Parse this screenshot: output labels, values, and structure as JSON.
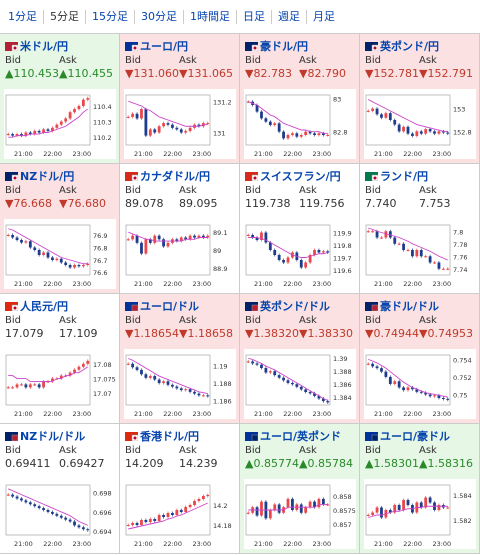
{
  "tabs": [
    {
      "label": "1分足",
      "active": false
    },
    {
      "label": "5分足",
      "active": true
    },
    {
      "label": "15分足",
      "active": false
    },
    {
      "label": "30分足",
      "active": false
    },
    {
      "label": "1時間足",
      "active": false
    },
    {
      "label": "日足",
      "active": false
    },
    {
      "label": "週足",
      "active": false
    },
    {
      "label": "月足",
      "active": false
    }
  ],
  "labels": {
    "bid": "Bid",
    "ask": "Ask"
  },
  "colors": {
    "up_bg": "#e6f7e6",
    "down_bg": "#fbe1e1",
    "up_text": "#2a8a2a",
    "down_text": "#c0392b",
    "link": "#0645ad",
    "candle_up": "#e8474c",
    "candle_down": "#1e3c8c",
    "ma": "#cc44cc"
  },
  "pairs": [
    {
      "name": "米ドル/円",
      "flag": "us-jp",
      "trend": "up",
      "bid": "▲110.453",
      "ask": "▲110.455",
      "ticks": [
        "110.4",
        "110.3",
        "110.2"
      ],
      "times": [
        "21:00",
        "22:00",
        "23:00"
      ],
      "chart_data": {
        "type": "candlestick",
        "ylim": [
          110.15,
          110.47
        ],
        "closes": [
          110.22,
          110.21,
          110.22,
          110.21,
          110.23,
          110.22,
          110.24,
          110.23,
          110.25,
          110.24,
          110.26,
          110.28,
          110.3,
          110.32,
          110.36,
          110.38,
          110.4,
          110.44,
          110.45
        ],
        "ma": [
          110.2,
          110.2,
          110.21,
          110.21,
          110.21,
          110.22,
          110.22,
          110.22,
          110.23,
          110.23,
          110.24,
          110.25,
          110.26,
          110.27,
          110.29,
          110.31,
          110.33,
          110.36,
          110.38
        ]
      }
    },
    {
      "name": "ユーロ/円",
      "flag": "eu-jp",
      "trend": "down",
      "bid": "▼131.060",
      "ask": "▼131.065",
      "ticks": [
        "131.2",
        "131"
      ],
      "times": [
        "21:00",
        "22:00",
        "23:00"
      ],
      "chart_data": {
        "type": "candlestick",
        "ylim": [
          130.92,
          131.24
        ],
        "closes": [
          131.1,
          131.12,
          131.09,
          131.15,
          130.98,
          131.02,
          131.0,
          131.04,
          131.06,
          131.05,
          131.03,
          131.02,
          131.0,
          131.01,
          131.03,
          131.05,
          131.04,
          131.06,
          131.06
        ],
        "ma": [
          131.2,
          131.19,
          131.18,
          131.17,
          131.15,
          131.14,
          131.12,
          131.1,
          131.09,
          131.08,
          131.07,
          131.06,
          131.05,
          131.04,
          131.04,
          131.04,
          131.04,
          131.05,
          131.05
        ]
      }
    },
    {
      "name": "豪ドル/円",
      "flag": "au-jp",
      "trend": "down",
      "bid": "▼82.783",
      "ask": "▼82.790",
      "ticks": [
        "83",
        "82.8"
      ],
      "times": [
        "21:00",
        "22:00",
        "23:00"
      ],
      "chart_data": {
        "type": "candlestick",
        "ylim": [
          82.72,
          83.02
        ],
        "closes": [
          82.98,
          82.96,
          82.92,
          82.88,
          82.86,
          82.84,
          82.85,
          82.8,
          82.76,
          82.78,
          82.79,
          82.77,
          82.78,
          82.8,
          82.79,
          82.78,
          82.79,
          82.78,
          82.78
        ],
        "ma": [
          82.98,
          82.97,
          82.96,
          82.94,
          82.92,
          82.9,
          82.89,
          82.87,
          82.85,
          82.84,
          82.83,
          82.82,
          82.81,
          82.81,
          82.8,
          82.8,
          82.8,
          82.79,
          82.79
        ]
      }
    },
    {
      "name": "英ポンド/円",
      "flag": "gb-jp",
      "trend": "down",
      "bid": "▼152.781",
      "ask": "▼152.791",
      "ticks": [
        "153",
        "152.8"
      ],
      "times": [
        "21:00",
        "22:00",
        "23:00"
      ],
      "chart_data": {
        "type": "candlestick",
        "ylim": [
          152.68,
          153.12
        ],
        "closes": [
          152.98,
          153.0,
          152.95,
          152.92,
          152.96,
          152.9,
          152.86,
          152.8,
          152.84,
          152.78,
          152.76,
          152.8,
          152.78,
          152.82,
          152.8,
          152.78,
          152.8,
          152.79,
          152.78
        ],
        "ma": [
          153.08,
          153.06,
          153.04,
          153.02,
          153.0,
          152.98,
          152.96,
          152.94,
          152.92,
          152.9,
          152.88,
          152.86,
          152.85,
          152.84,
          152.83,
          152.82,
          152.81,
          152.8,
          152.8
        ]
      }
    },
    {
      "name": "NZドル/円",
      "flag": "nz-jp",
      "trend": "down",
      "bid": "▼76.668",
      "ask": "▼76.680",
      "ticks": [
        "76.9",
        "76.8",
        "76.7",
        "76.6"
      ],
      "times": [
        "21:00",
        "22:00",
        "23:00"
      ],
      "chart_data": {
        "type": "candlestick",
        "ylim": [
          76.58,
          76.98
        ],
        "closes": [
          76.9,
          76.88,
          76.86,
          76.84,
          76.85,
          76.8,
          76.78,
          76.74,
          76.76,
          76.72,
          76.7,
          76.71,
          76.68,
          76.66,
          76.64,
          76.66,
          76.65,
          76.66,
          76.67
        ],
        "ma": [
          76.95,
          76.94,
          76.92,
          76.9,
          76.88,
          76.86,
          76.84,
          76.82,
          76.8,
          76.78,
          76.76,
          76.74,
          76.72,
          76.71,
          76.7,
          76.69,
          76.68,
          76.67,
          76.67
        ]
      }
    },
    {
      "name": "カナダドル/円",
      "flag": "ca-jp",
      "trend": "flat",
      "bid": "89.078",
      "ask": "89.095",
      "ticks": [
        "89.1",
        "89",
        "88.9"
      ],
      "times": [
        "21:00",
        "22:00",
        "23:00"
      ],
      "chart_data": {
        "type": "candlestick",
        "ylim": [
          88.86,
          89.14
        ],
        "closes": [
          89.06,
          89.08,
          89.04,
          88.98,
          89.06,
          89.04,
          89.08,
          89.06,
          89.02,
          89.04,
          89.06,
          89.05,
          89.07,
          89.06,
          89.08,
          89.07,
          89.08,
          89.07,
          89.08
        ],
        "ma": [
          89.1,
          89.09,
          89.08,
          89.07,
          89.06,
          89.06,
          89.05,
          89.05,
          89.05,
          89.05,
          89.05,
          89.05,
          89.05,
          89.06,
          89.06,
          89.06,
          89.07,
          89.07,
          89.07
        ]
      }
    },
    {
      "name": "スイスフラン/円",
      "flag": "ch-jp",
      "trend": "flat",
      "bid": "119.738",
      "ask": "119.756",
      "ticks": [
        "119.9",
        "119.8",
        "119.7",
        "119.6"
      ],
      "times": [
        "21:00",
        "22:00",
        "23:00"
      ],
      "chart_data": {
        "type": "candlestick",
        "ylim": [
          119.56,
          119.96
        ],
        "closes": [
          119.88,
          119.86,
          119.84,
          119.9,
          119.82,
          119.76,
          119.72,
          119.68,
          119.66,
          119.7,
          119.74,
          119.68,
          119.62,
          119.66,
          119.72,
          119.76,
          119.74,
          119.75,
          119.74
        ],
        "ma": [
          119.86,
          119.86,
          119.86,
          119.85,
          119.84,
          119.82,
          119.8,
          119.78,
          119.76,
          119.74,
          119.72,
          119.71,
          119.7,
          119.7,
          119.71,
          119.72,
          119.73,
          119.73,
          119.74
        ]
      }
    },
    {
      "name": "ランド/円",
      "flag": "za-jp",
      "trend": "flat",
      "bid": "7.740",
      "ask": "7.753",
      "ticks": [
        "7.8",
        "7.78",
        "7.76",
        "7.74"
      ],
      "times": [
        "21:00",
        "22:00",
        "23:00"
      ],
      "chart_data": {
        "type": "candlestick",
        "ylim": [
          7.73,
          7.81
        ],
        "closes": [
          7.8,
          7.8,
          7.79,
          7.79,
          7.8,
          7.79,
          7.78,
          7.78,
          7.77,
          7.77,
          7.76,
          7.77,
          7.76,
          7.76,
          7.75,
          7.75,
          7.74,
          7.74,
          7.74
        ],
        "ma": [
          7.805,
          7.803,
          7.8,
          7.798,
          7.796,
          7.794,
          7.792,
          7.79,
          7.787,
          7.784,
          7.78,
          7.777,
          7.774,
          7.771,
          7.768,
          7.764,
          7.76,
          7.757,
          7.754
        ]
      }
    },
    {
      "name": "人民元/円",
      "flag": "cn-jp",
      "trend": "flat",
      "bid": "17.079",
      "ask": "17.109",
      "ticks": [
        "17.08",
        "17.075",
        "17.07"
      ],
      "times": [
        "21:00",
        "22:00",
        "23:00"
      ],
      "chart_data": {
        "type": "candlestick",
        "ylim": [
          17.066,
          17.083
        ],
        "closes": [
          17.072,
          17.072,
          17.073,
          17.073,
          17.072,
          17.073,
          17.073,
          17.072,
          17.074,
          17.074,
          17.075,
          17.075,
          17.076,
          17.076,
          17.077,
          17.078,
          17.079,
          17.08,
          17.081
        ],
        "ma": [
          17.076,
          17.076,
          17.075,
          17.075,
          17.075,
          17.074,
          17.074,
          17.074,
          17.074,
          17.074,
          17.074,
          17.075,
          17.075,
          17.076,
          17.076,
          17.077,
          17.077,
          17.078,
          17.079
        ]
      }
    },
    {
      "name": "ユーロ/ドル",
      "flag": "eu-us",
      "trend": "down",
      "bid": "▼1.18654",
      "ask": "▼1.18658",
      "ticks": [
        "1.19",
        "1.188",
        "1.186"
      ],
      "times": [
        "21:00",
        "22:00",
        "23:00"
      ],
      "chart_data": {
        "type": "candlestick",
        "ylim": [
          1.1855,
          1.1912
        ],
        "closes": [
          1.1902,
          1.1898,
          1.1895,
          1.189,
          1.1886,
          1.1888,
          1.1884,
          1.188,
          1.1882,
          1.1878,
          1.1876,
          1.1874,
          1.1872,
          1.1873,
          1.187,
          1.1868,
          1.1866,
          1.1866,
          1.1865
        ],
        "ma": [
          1.1908,
          1.1906,
          1.1903,
          1.19,
          1.1897,
          1.1894,
          1.1891,
          1.1888,
          1.1886,
          1.1884,
          1.1882,
          1.188,
          1.1878,
          1.1876,
          1.1874,
          1.1872,
          1.187,
          1.1869,
          1.1868
        ]
      }
    },
    {
      "name": "英ポンド/ドル",
      "flag": "gb-us",
      "trend": "down",
      "bid": "▼1.38320",
      "ask": "▼1.38330",
      "ticks": [
        "1.39",
        "1.388",
        "1.386",
        "1.384"
      ],
      "times": [
        "21:00",
        "22:00",
        "23:00"
      ],
      "chart_data": {
        "type": "candlestick",
        "ylim": [
          1.3828,
          1.3905
        ],
        "closes": [
          1.3895,
          1.3892,
          1.389,
          1.3885,
          1.3878,
          1.388,
          1.3874,
          1.387,
          1.3866,
          1.3862,
          1.386,
          1.3856,
          1.3852,
          1.3848,
          1.3846,
          1.3842,
          1.3838,
          1.3834,
          1.3832
        ],
        "ma": [
          1.39,
          1.3898,
          1.3895,
          1.3892,
          1.3888,
          1.3885,
          1.3882,
          1.3878,
          1.3874,
          1.387,
          1.3866,
          1.3862,
          1.3858,
          1.3854,
          1.385,
          1.3846,
          1.3842,
          1.3838,
          1.3835
        ]
      }
    },
    {
      "name": "豪ドル/ドル",
      "flag": "au-us",
      "trend": "down",
      "bid": "▼0.74944",
      "ask": "▼0.74953",
      "ticks": [
        "0.754",
        "0.752",
        "0.75"
      ],
      "times": [
        "21:00",
        "22:00",
        "23:00"
      ],
      "chart_data": {
        "type": "candlestick",
        "ylim": [
          0.7488,
          0.7545
        ],
        "closes": [
          0.7535,
          0.7532,
          0.753,
          0.7526,
          0.752,
          0.7512,
          0.7515,
          0.7508,
          0.7505,
          0.7508,
          0.7506,
          0.7503,
          0.7502,
          0.75,
          0.7498,
          0.7499,
          0.7496,
          0.7495,
          0.7494
        ],
        "ma": [
          0.754,
          0.7538,
          0.7536,
          0.7533,
          0.753,
          0.7526,
          0.7522,
          0.7518,
          0.7514,
          0.7511,
          0.7508,
          0.7506,
          0.7504,
          0.7502,
          0.7501,
          0.75,
          0.7499,
          0.7498,
          0.7497
        ]
      }
    },
    {
      "name": "NZドル/ドル",
      "flag": "nz-us",
      "trend": "flat",
      "bid": "0.69411",
      "ask": "0.69427",
      "ticks": [
        "0.698",
        "0.696",
        "0.694"
      ],
      "times": [
        "21:00",
        "22:00",
        "23:00"
      ],
      "chart_data": {
        "type": "candlestick",
        "ylim": [
          0.6936,
          0.6988
        ],
        "closes": [
          0.6978,
          0.6976,
          0.6974,
          0.6972,
          0.697,
          0.6968,
          0.6966,
          0.6964,
          0.6962,
          0.696,
          0.6958,
          0.6956,
          0.6954,
          0.6952,
          0.695,
          0.6946,
          0.6944,
          0.6942,
          0.6941
        ],
        "ma": [
          0.6984,
          0.6982,
          0.698,
          0.6978,
          0.6976,
          0.6974,
          0.6972,
          0.697,
          0.6968,
          0.6966,
          0.6964,
          0.6962,
          0.696,
          0.6958,
          0.6956,
          0.6953,
          0.695,
          0.6948,
          0.6946
        ]
      }
    },
    {
      "name": "香港ドル/円",
      "flag": "hk-jp",
      "trend": "flat",
      "bid": "14.209",
      "ask": "14.239",
      "ticks": [
        "14.2",
        "14.18"
      ],
      "times": [
        "21:00",
        "22:00",
        "23:00"
      ],
      "chart_data": {
        "type": "candlestick",
        "ylim": [
          14.17,
          14.22
        ],
        "closes": [
          14.18,
          14.182,
          14.18,
          14.185,
          14.183,
          14.186,
          14.184,
          14.19,
          14.188,
          14.192,
          14.19,
          14.195,
          14.193,
          14.198,
          14.2,
          14.204,
          14.206,
          14.209,
          14.21
        ],
        "ma": [
          14.176,
          14.177,
          14.178,
          14.179,
          14.18,
          14.181,
          14.182,
          14.183,
          14.184,
          14.186,
          14.187,
          14.189,
          14.19,
          14.192,
          14.194,
          14.196,
          14.198,
          14.2,
          14.202
        ]
      }
    },
    {
      "name": "ユーロ/英ポンド",
      "flag": "eu-gb",
      "trend": "up",
      "bid": "▲0.85774",
      "ask": "▲0.85784",
      "ticks": [
        "0.858",
        "0.8575",
        "0.857"
      ],
      "times": [
        "21:00",
        "22:00",
        "23:00"
      ],
      "chart_data": {
        "type": "candlestick",
        "ylim": [
          0.8566,
          0.8584
        ],
        "closes": [
          0.8574,
          0.8576,
          0.8573,
          0.8578,
          0.8572,
          0.8575,
          0.8577,
          0.8574,
          0.8576,
          0.8579,
          0.8575,
          0.8577,
          0.8574,
          0.8576,
          0.8578,
          0.8576,
          0.8579,
          0.8577,
          0.8577
        ],
        "ma": [
          0.8575,
          0.8575,
          0.8575,
          0.8575,
          0.8575,
          0.8575,
          0.8575,
          0.8575,
          0.8575,
          0.8576,
          0.8576,
          0.8576,
          0.8576,
          0.8576,
          0.8576,
          0.8576,
          0.8577,
          0.8577,
          0.8577
        ]
      }
    },
    {
      "name": "ユーロ/豪ドル",
      "flag": "eu-au",
      "trend": "up",
      "bid": "▲1.58301",
      "ask": "▲1.58316",
      "ticks": [
        "1.584",
        "1.582"
      ],
      "times": [
        "21:00",
        "22:00",
        "23:00"
      ],
      "chart_data": {
        "type": "candlestick",
        "ylim": [
          1.5808,
          1.5848
        ],
        "closes": [
          1.5824,
          1.5826,
          1.583,
          1.5822,
          1.5828,
          1.5826,
          1.5832,
          1.5828,
          1.5836,
          1.5832,
          1.5826,
          1.5834,
          1.583,
          1.5838,
          1.5834,
          1.5828,
          1.5832,
          1.583,
          1.583
        ],
        "ma": [
          1.5822,
          1.5823,
          1.5824,
          1.5824,
          1.5825,
          1.5826,
          1.5827,
          1.5827,
          1.5828,
          1.5829,
          1.5829,
          1.583,
          1.583,
          1.5831,
          1.5831,
          1.5831,
          1.5831,
          1.5831,
          1.5831
        ]
      }
    }
  ]
}
